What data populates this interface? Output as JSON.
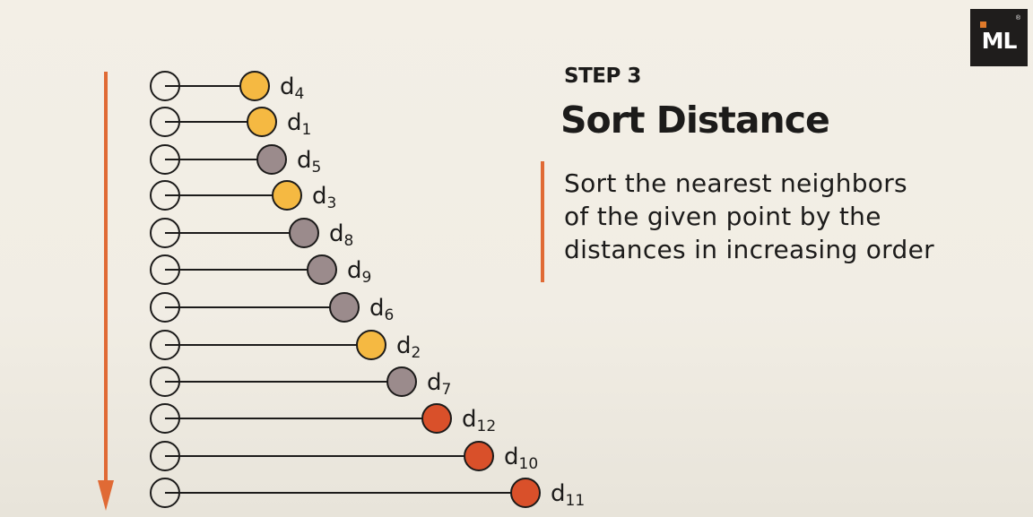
{
  "header": {
    "step_label": "STEP 3",
    "step_title": "Sort Distance"
  },
  "description": {
    "text": "Sort the nearest neighbors\nof the given point by the\ndistances in increasing order"
  },
  "logo": {
    "text": "ML",
    "registered_mark": "®"
  },
  "colors": {
    "orange_accent": "#e06a35",
    "yellow": "#f5b942",
    "gray": "#9b8b8c",
    "red_orange": "#d9502a",
    "line": "#1c1b1a"
  },
  "distance_rows": [
    {
      "base": "d",
      "subscript": "4",
      "color": "yellow"
    },
    {
      "base": "d",
      "subscript": "1",
      "color": "yellow"
    },
    {
      "base": "d",
      "subscript": "5",
      "color": "gray"
    },
    {
      "base": "d",
      "subscript": "3",
      "color": "yellow"
    },
    {
      "base": "d",
      "subscript": "8",
      "color": "gray"
    },
    {
      "base": "d",
      "subscript": "9",
      "color": "gray"
    },
    {
      "base": "d",
      "subscript": "6",
      "color": "gray"
    },
    {
      "base": "d",
      "subscript": "2",
      "color": "yellow"
    },
    {
      "base": "d",
      "subscript": "7",
      "color": "gray"
    },
    {
      "base": "d",
      "subscript": "12",
      "color": "red_orange"
    },
    {
      "base": "d",
      "subscript": "10",
      "color": "red_orange"
    },
    {
      "base": "d",
      "subscript": "11",
      "color": "red_orange"
    }
  ]
}
